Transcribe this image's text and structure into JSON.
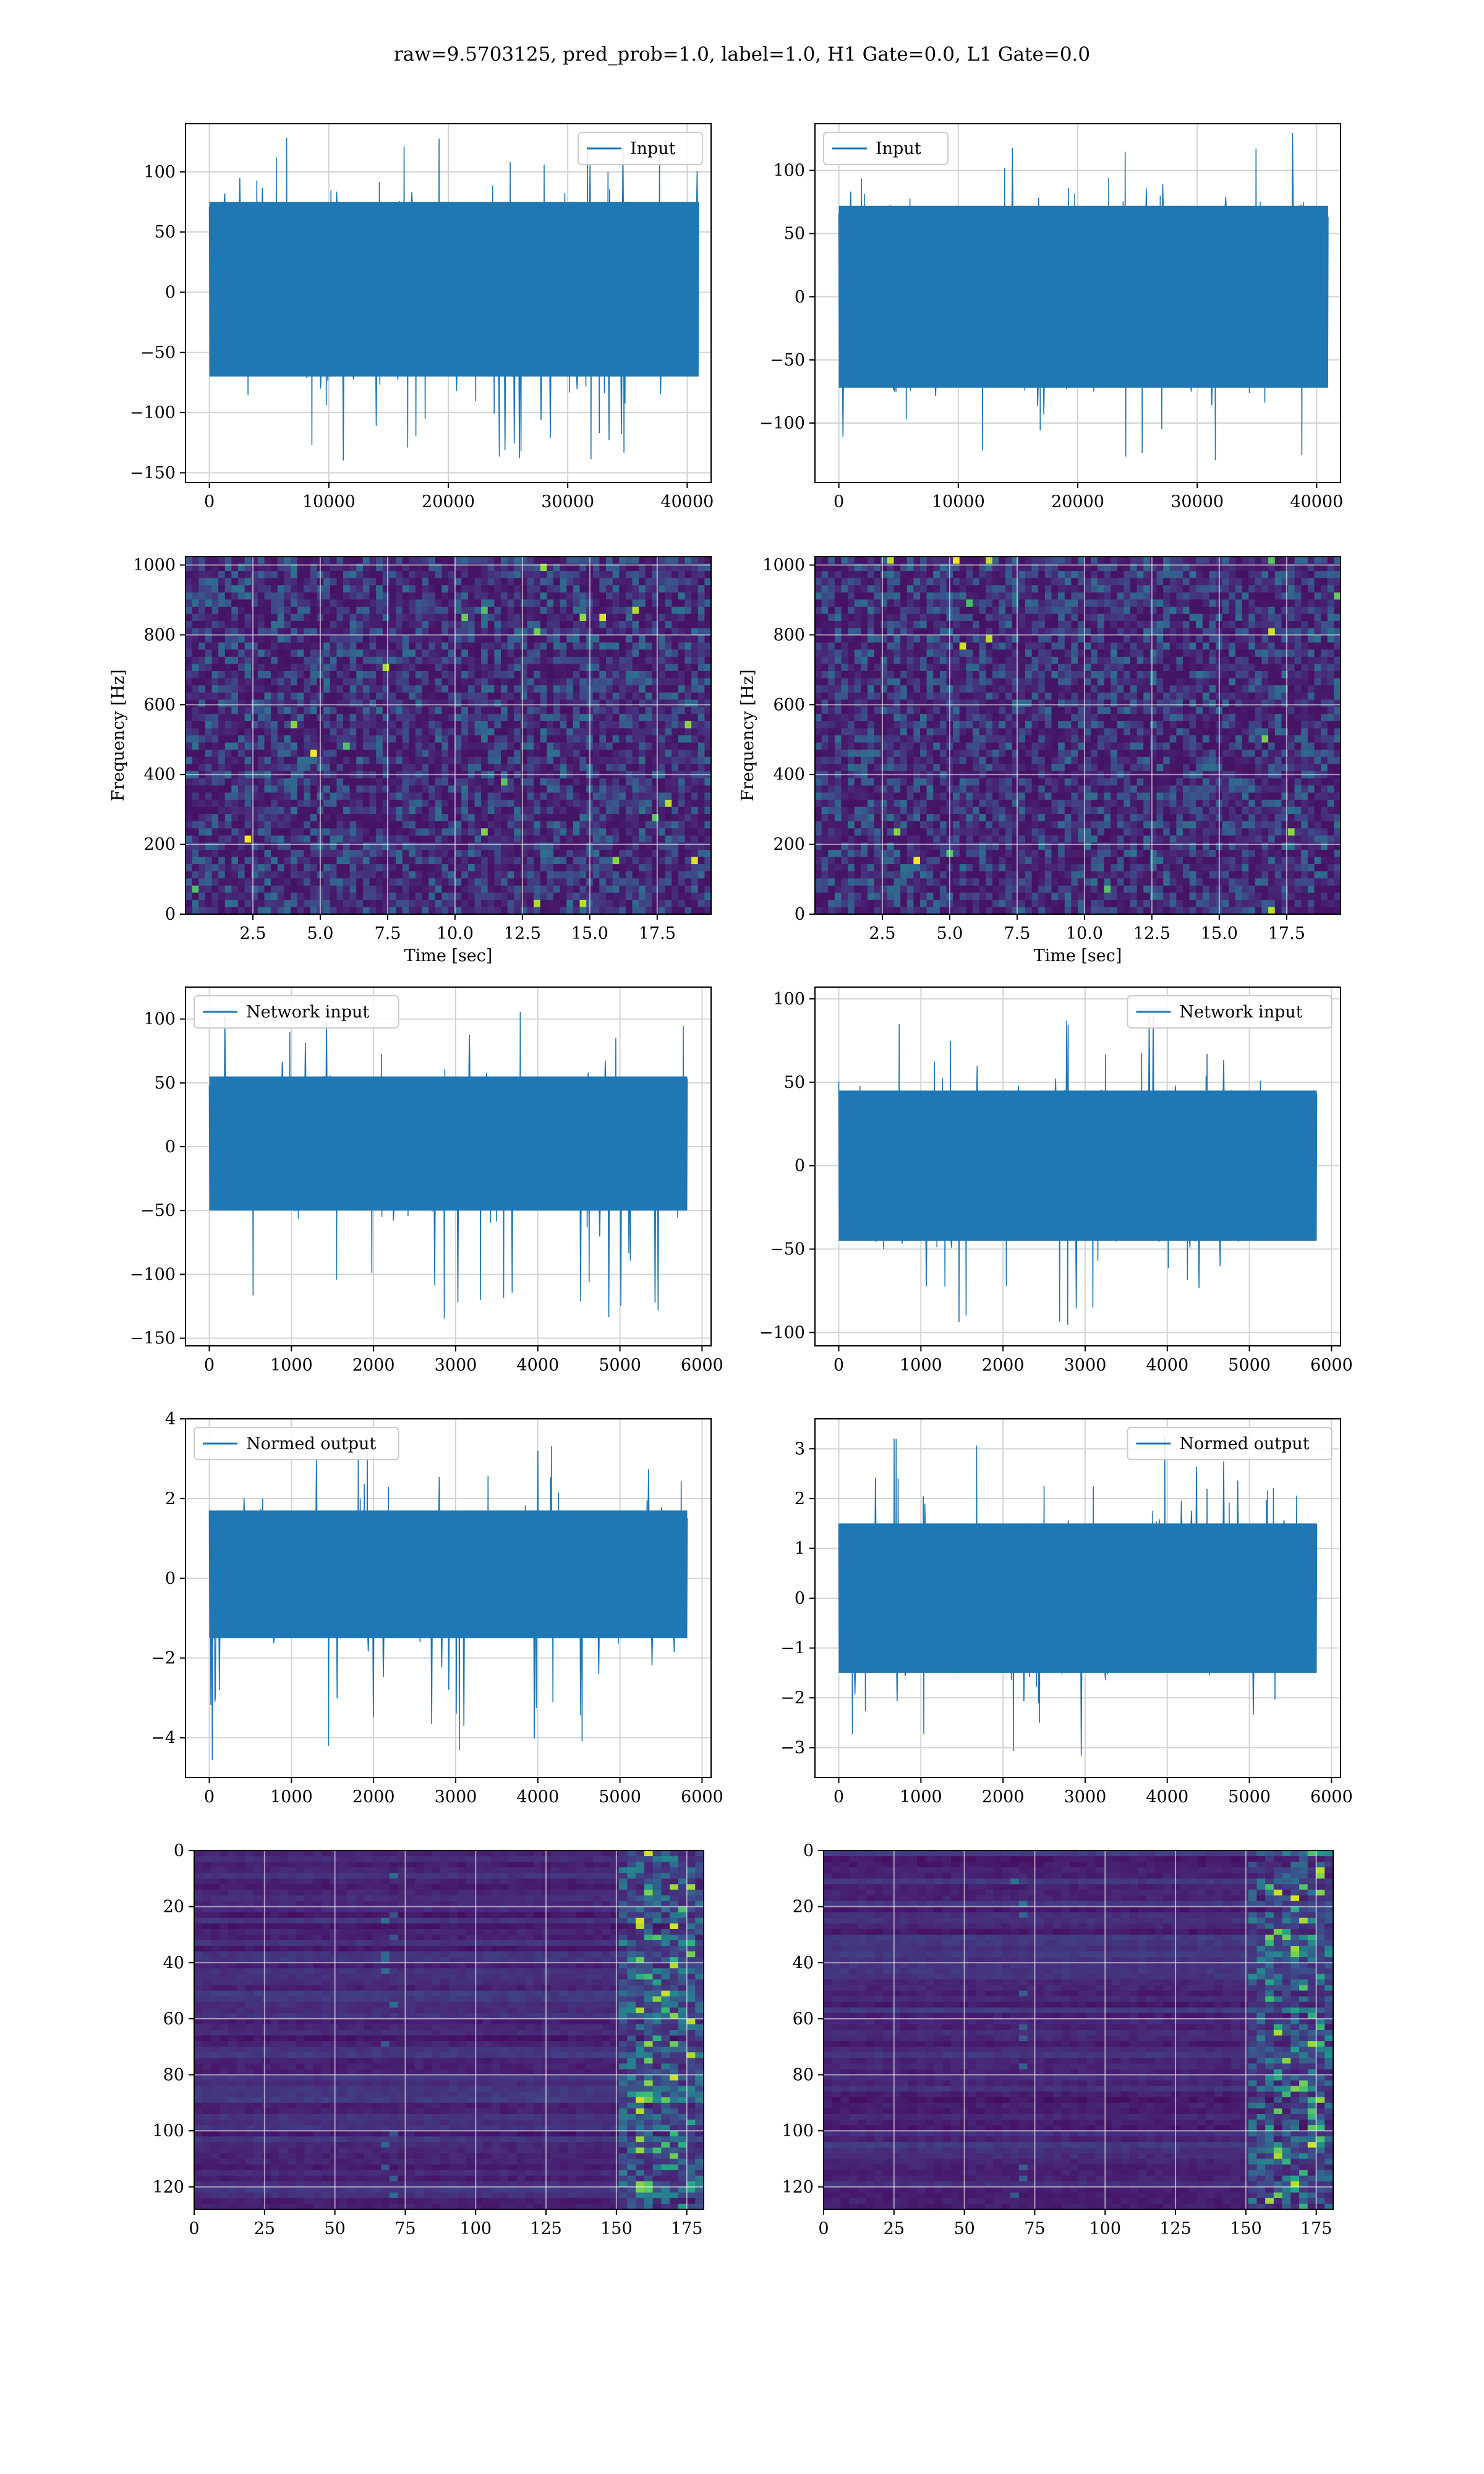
{
  "title": "raw=9.5703125, pred_prob=1.0, label=1.0, H1 Gate=0.0, L1 Gate=0.0",
  "colors": {
    "series": "#1f77b4",
    "grid": "#d3d3d3",
    "viridis_low": "#440154",
    "viridis_high": "#fde725"
  },
  "chart_data": [
    {
      "type": "line",
      "legend": "Input",
      "legend_loc": "upper-right",
      "xlim": [
        -2000,
        42000
      ],
      "ylim": [
        -158,
        140
      ],
      "xticks": [
        0,
        10000,
        20000,
        30000,
        40000
      ],
      "yticks": [
        -150,
        -100,
        -50,
        0,
        50,
        100
      ],
      "x_range": [
        0,
        40960
      ],
      "band": [
        -70,
        75
      ],
      "spikes": [
        -140,
        130
      ],
      "grid": true
    },
    {
      "type": "line",
      "legend": "Input",
      "legend_loc": "upper-left",
      "xlim": [
        -2000,
        42000
      ],
      "ylim": [
        -147,
        137
      ],
      "xticks": [
        0,
        10000,
        20000,
        30000,
        40000
      ],
      "yticks": [
        -100,
        -50,
        0,
        50,
        100
      ],
      "x_range": [
        0,
        40960
      ],
      "band": [
        -72,
        72
      ],
      "spikes": [
        -130,
        130
      ],
      "grid": true
    },
    {
      "type": "heatmap",
      "xlabel": "Time [sec]",
      "ylabel": "Frequency [Hz]",
      "xlim": [
        0,
        19.5
      ],
      "ylim": [
        0,
        1024
      ],
      "xticks": [
        2.5,
        5.0,
        7.5,
        10.0,
        12.5,
        15.0,
        17.5
      ],
      "yticks": [
        0,
        200,
        400,
        600,
        800,
        1000
      ],
      "grid": true
    },
    {
      "type": "heatmap",
      "xlabel": "Time [sec]",
      "ylabel": "Frequency [Hz]",
      "xlim": [
        0,
        19.5
      ],
      "ylim": [
        0,
        1024
      ],
      "xticks": [
        2.5,
        5.0,
        7.5,
        10.0,
        12.5,
        15.0,
        17.5
      ],
      "yticks": [
        0,
        200,
        400,
        600,
        800,
        1000
      ],
      "grid": true
    },
    {
      "type": "line",
      "legend": "Network input",
      "legend_loc": "upper-left",
      "xlim": [
        -290,
        6110
      ],
      "ylim": [
        -156,
        125
      ],
      "xticks": [
        0,
        1000,
        2000,
        3000,
        4000,
        5000,
        6000
      ],
      "yticks": [
        -150,
        -100,
        -50,
        0,
        50,
        100
      ],
      "x_range": [
        0,
        5820
      ],
      "band": [
        -50,
        55
      ],
      "spikes": [
        -143,
        115
      ],
      "grid": true
    },
    {
      "type": "line",
      "legend": "Network input",
      "legend_loc": "upper-right",
      "xlim": [
        -290,
        6110
      ],
      "ylim": [
        -108,
        107
      ],
      "xticks": [
        0,
        1000,
        2000,
        3000,
        4000,
        5000,
        6000
      ],
      "yticks": [
        -100,
        -50,
        0,
        50,
        100
      ],
      "x_range": [
        0,
        5820
      ],
      "band": [
        -45,
        45
      ],
      "spikes": [
        -100,
        95
      ],
      "grid": true
    },
    {
      "type": "line",
      "legend": "Normed output",
      "legend_loc": "upper-left",
      "xlim": [
        -290,
        6110
      ],
      "ylim": [
        -5,
        4
      ],
      "xticks": [
        0,
        1000,
        2000,
        3000,
        4000,
        5000,
        6000
      ],
      "yticks": [
        -4,
        -2,
        0,
        2,
        4
      ],
      "x_range": [
        0,
        5820
      ],
      "band": [
        -1.5,
        1.7
      ],
      "spikes": [
        -4.6,
        3.6
      ],
      "grid": true
    },
    {
      "type": "line",
      "legend": "Normed output",
      "legend_loc": "upper-right",
      "xlim": [
        -290,
        6110
      ],
      "ylim": [
        -3.6,
        3.6
      ],
      "xticks": [
        0,
        1000,
        2000,
        3000,
        4000,
        5000,
        6000
      ],
      "yticks": [
        -3,
        -2,
        -1,
        0,
        1,
        2,
        3
      ],
      "x_range": [
        0,
        5820
      ],
      "band": [
        -1.5,
        1.5
      ],
      "spikes": [
        -3.3,
        3.3
      ],
      "grid": true
    },
    {
      "type": "heatmap",
      "xlim": [
        0,
        181
      ],
      "ylim": [
        128,
        0
      ],
      "xticks": [
        0,
        25,
        50,
        75,
        100,
        125,
        150,
        175
      ],
      "yticks": [
        0,
        20,
        40,
        60,
        80,
        100,
        120
      ],
      "grid": true
    },
    {
      "type": "heatmap",
      "xlim": [
        0,
        181
      ],
      "ylim": [
        128,
        0
      ],
      "xticks": [
        0,
        25,
        50,
        75,
        100,
        125,
        150,
        175
      ],
      "yticks": [
        0,
        20,
        40,
        60,
        80,
        100,
        120
      ],
      "grid": true
    }
  ]
}
